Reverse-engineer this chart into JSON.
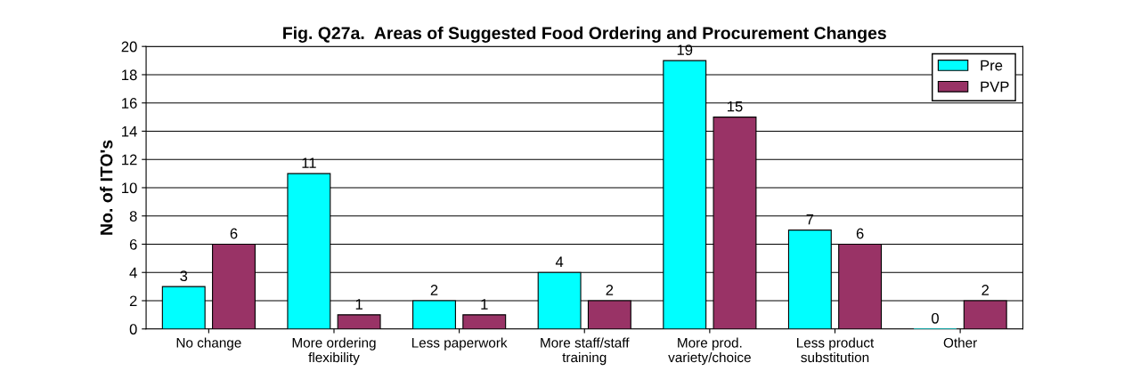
{
  "chart_data": {
    "type": "bar",
    "title": "Fig. Q27a.  Areas of Suggested Food Ordering and Procurement Changes",
    "ylabel": "No. of ITO's",
    "categories": [
      "No change",
      "More ordering\nflexibility",
      "Less paperwork",
      "More staff/staff\ntraining",
      "More prod.\nvariety/choice",
      "Less product\nsubstitution",
      "Other"
    ],
    "series": [
      {
        "name": "Pre",
        "color": "#00ffff",
        "values": [
          3,
          11,
          2,
          4,
          19,
          7,
          0
        ]
      },
      {
        "name": "PVP",
        "color": "#993366",
        "values": [
          6,
          1,
          1,
          2,
          15,
          6,
          2
        ]
      }
    ],
    "ylim": [
      0,
      20
    ],
    "yticks": [
      0,
      2,
      4,
      6,
      8,
      10,
      12,
      14,
      16,
      18,
      20
    ],
    "grid": "y",
    "legend": "top right",
    "data_labels": true
  }
}
